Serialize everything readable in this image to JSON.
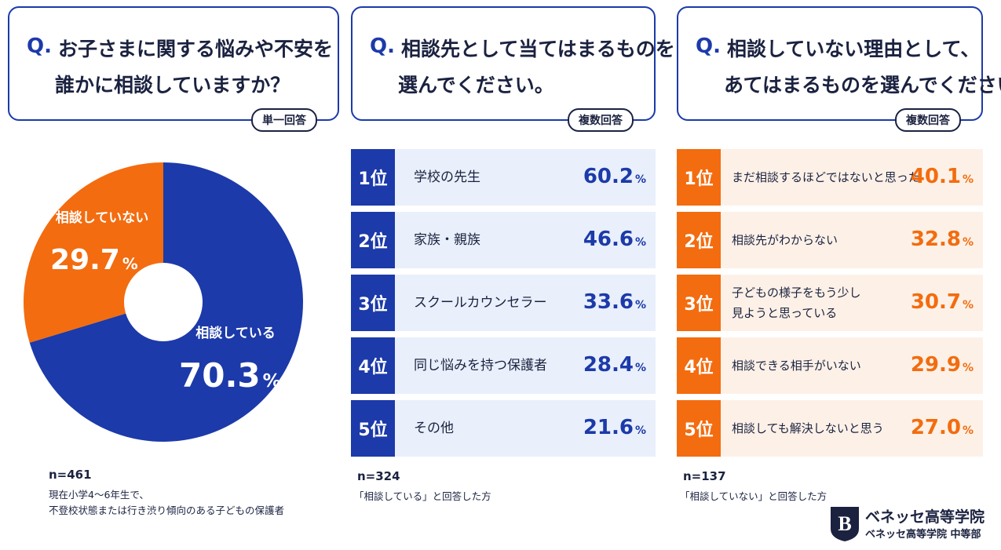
{
  "chart_data": {
    "type": "pie",
    "question_mark": "Q.",
    "title_lines": [
      "お子さまに関する悩みや不安を",
      "誰かに相談していますか？"
    ],
    "badge": "単一回答",
    "categories": [
      "相談している",
      "相談していない"
    ],
    "values": [
      70.3,
      29.7
    ],
    "colors": [
      "#1c3aa9",
      "#f36c0f"
    ],
    "unit": "%",
    "n": "n=461",
    "notes": [
      "現在小学4〜6年生で、",
      "不登校状態または行き渋り傾向のある子どもの保護者"
    ]
  },
  "rankings": [
    {
      "question_mark": "Q.",
      "title_lines": [
        "相談先として当てはまるものを",
        "選んでください。"
      ],
      "badge": "複数回答",
      "color": "#1c3aa9",
      "row_color": "#e9f0fb",
      "unit": "%",
      "items": [
        {
          "rank": "1位",
          "label_lines": [
            "学校の先生"
          ],
          "value": 60.2
        },
        {
          "rank": "2位",
          "label_lines": [
            "家族・親族"
          ],
          "value": 46.6
        },
        {
          "rank": "3位",
          "label_lines": [
            "スクールカウンセラー"
          ],
          "value": 33.6
        },
        {
          "rank": "4位",
          "label_lines": [
            "同じ悩みを持つ保護者"
          ],
          "value": 28.4
        },
        {
          "rank": "5位",
          "label_lines": [
            "その他"
          ],
          "value": 21.6
        }
      ],
      "n": "n=324",
      "note": "「相談している」と回答した方"
    },
    {
      "question_mark": "Q.",
      "title_lines": [
        "相談していない理由として、",
        "あてはまるものを選んでください。"
      ],
      "badge": "複数回答",
      "color": "#f36c0f",
      "row_color": "#fdf1e7",
      "unit": "%",
      "items": [
        {
          "rank": "1位",
          "label_lines": [
            "まだ相談するほどではないと思った"
          ],
          "value": 40.1
        },
        {
          "rank": "2位",
          "label_lines": [
            "相談先がわからない"
          ],
          "value": 32.8
        },
        {
          "rank": "3位",
          "label_lines": [
            "子どもの様子をもう少し",
            "見ようと思っている"
          ],
          "value": 30.7
        },
        {
          "rank": "4位",
          "label_lines": [
            "相談できる相手がいない"
          ],
          "value": 29.9
        },
        {
          "rank": "5位",
          "label_lines": [
            "相談しても解決しないと思う"
          ],
          "value": 27.0,
          "value_label": "27.0"
        }
      ],
      "n": "n=137",
      "note": "「相談していない」と回答した方"
    }
  ],
  "logo": {
    "name": "ベネッセ高等学院",
    "sub": "ベネッセ高等学院 中等部"
  }
}
